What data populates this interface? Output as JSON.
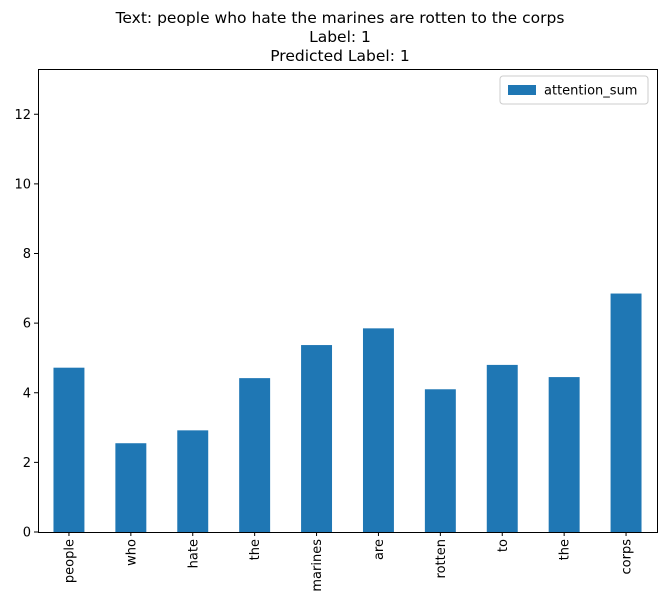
{
  "chart_data": {
    "type": "bar",
    "title_lines": [
      "Text: people who hate the marines are rotten to the corps",
      "Label: 1",
      "Predicted Label: 1"
    ],
    "xlabel": "",
    "ylabel": "",
    "categories": [
      "people",
      "who",
      "hate",
      "the",
      "marines",
      "are",
      "rotten",
      "to",
      "the",
      "corps"
    ],
    "series": [
      {
        "name": "attention_sum",
        "color": "#1f77b4",
        "values": [
          4.72,
          2.55,
          2.92,
          4.42,
          5.37,
          5.85,
          4.1,
          4.8,
          4.45,
          6.85
        ]
      }
    ],
    "ylim": [
      0,
      13.3
    ],
    "yticks": [
      "0",
      "2",
      "4",
      "6",
      "8",
      "10",
      "12"
    ],
    "legend_position": "top-right",
    "grid": false
  }
}
